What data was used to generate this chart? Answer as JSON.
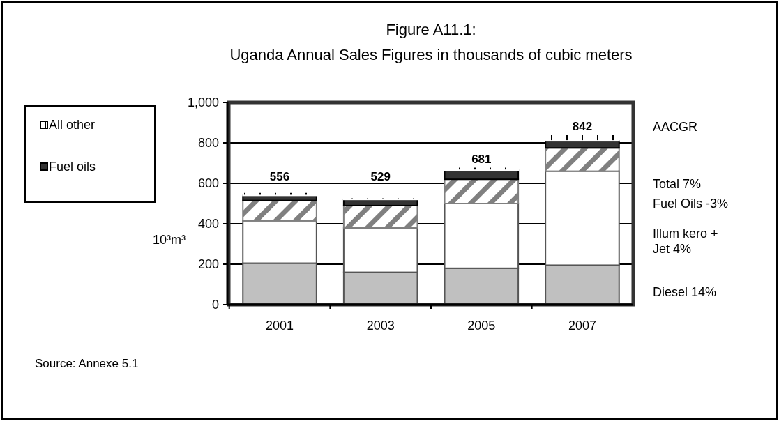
{
  "chart_data": {
    "type": "bar",
    "title": "Figure A11.1:",
    "subtitle": "Uganda Annual Sales Figures in thousands of cubic meters",
    "ylabel": "10³m³",
    "categories": [
      "2001",
      "2003",
      "2005",
      "2007"
    ],
    "stacked": true,
    "series": [
      {
        "color": "#c0c0c0",
        "values": [
          205,
          160,
          180,
          195
        ]
      },
      {
        "color": "#ffffff",
        "values": [
          210,
          220,
          320,
          465
        ]
      },
      {
        "color": "#808080",
        "values": [
          100,
          110,
          120,
          115
        ]
      },
      {
        "name": "Fuel oils",
        "color": "#333333",
        "values": [
          25,
          30,
          45,
          35
        ]
      },
      {
        "name": "All other",
        "color": "#ffffff",
        "values": [
          16,
          9,
          16,
          32
        ]
      }
    ],
    "totals": [
      "556",
      "529",
      "681",
      "842"
    ],
    "ylim": [
      0,
      1000
    ],
    "yticks": [
      0,
      200,
      400,
      600,
      800,
      {
        "value": 1000,
        "label": "1,000"
      }
    ],
    "grid": "y",
    "legend": "left",
    "annotations": [
      "AACGR",
      "Total 7%",
      "Fuel Oils -3%",
      "Illum kero + Jet 4%",
      "Diesel 14%",
      "Source: Annexe 5.1"
    ]
  }
}
